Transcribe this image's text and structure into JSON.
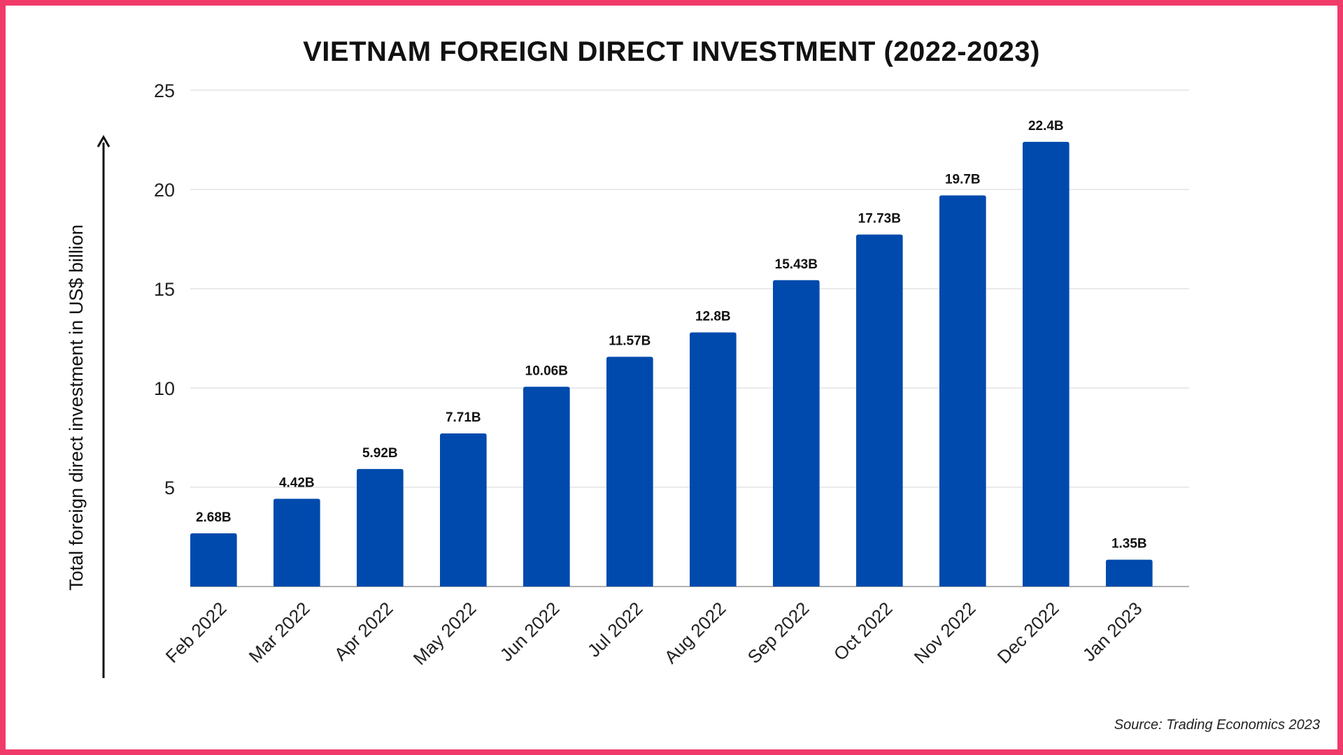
{
  "chart_data": {
    "type": "bar",
    "title": "VIETNAM FOREIGN DIRECT INVESTMENT (2022-2023)",
    "xlabel": "",
    "ylabel": "Total foreign direct investment in US$ billion",
    "categories": [
      "Feb 2022",
      "Mar 2022",
      "Apr 2022",
      "May 2022",
      "Jun 2022",
      "Jul 2022",
      "Aug 2022",
      "Sep 2022",
      "Oct 2022",
      "Nov 2022",
      "Dec 2022",
      "Jan 2023"
    ],
    "values": [
      2.68,
      4.42,
      5.92,
      7.71,
      10.06,
      11.57,
      12.8,
      15.43,
      17.73,
      19.7,
      22.4,
      1.35
    ],
    "data_labels": [
      "2.68B",
      "4.42B",
      "5.92B",
      "7.71B",
      "10.06B",
      "11.57B",
      "12.8B",
      "15.43B",
      "17.73B",
      "19.7B",
      "22.4B",
      "1.35B"
    ],
    "ylim": [
      0,
      25
    ],
    "yticks": [
      5,
      10,
      15,
      20,
      25
    ],
    "grid": true,
    "legend": "none",
    "colors": {
      "bar": "#004aad",
      "grid": "#dddddd",
      "axis": "#999999",
      "frame": "#f03a6a"
    },
    "source": "Source: Trading Economics 2023"
  }
}
